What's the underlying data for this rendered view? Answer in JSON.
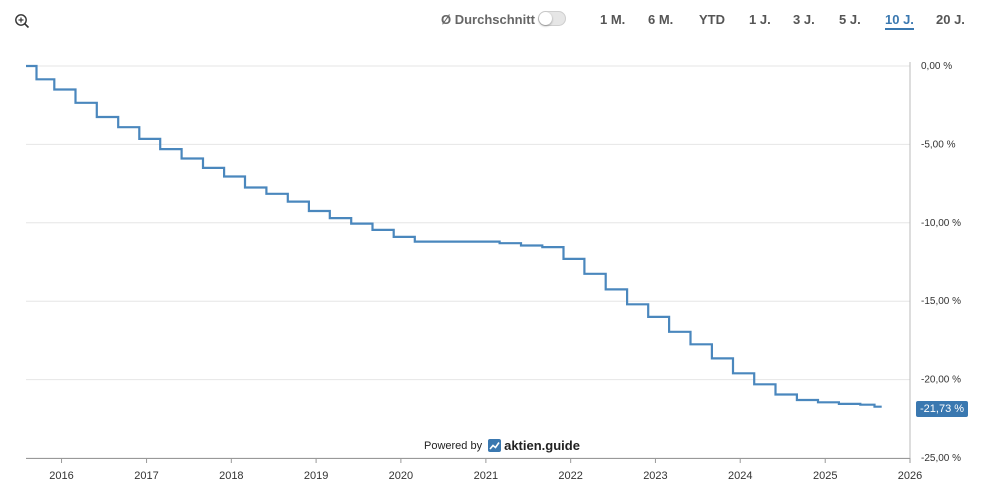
{
  "toolbar": {
    "average_label": "Ø Durchschnitt",
    "ranges": [
      "1 M.",
      "6 M.",
      "YTD",
      "1 J.",
      "3 J.",
      "5 J.",
      "10 J.",
      "20 J."
    ],
    "active_range": "10 J."
  },
  "footer": {
    "powered_by": "Powered by",
    "brand": "aktien.guide"
  },
  "colors": {
    "line": "#4a87bd",
    "accent": "#3a78b0",
    "grid": "#e6e6e6"
  },
  "chart_data": {
    "type": "line",
    "title": "",
    "xlabel": "",
    "ylabel": "",
    "xlim": [
      "2015-08-01",
      "2026-01-01"
    ],
    "ylim": [
      -25,
      0
    ],
    "x_ticks": [
      "2016",
      "2017",
      "2018",
      "2019",
      "2020",
      "2021",
      "2022",
      "2023",
      "2024",
      "2025",
      "2026"
    ],
    "y_ticks": [
      0,
      -5,
      -10,
      -15,
      -20,
      -25
    ],
    "y_tick_labels": [
      "0,00 %",
      "-5,00 %",
      "-10,00 %",
      "-15,00 %",
      "-20,00 %",
      "-25,00 %"
    ],
    "last_value_label": "-21,73 %",
    "grid": true,
    "series": [
      {
        "step": true,
        "points": [
          [
            "2015-08-01",
            0.0
          ],
          [
            "2015-09-15",
            -0.85
          ],
          [
            "2015-12-01",
            -1.5
          ],
          [
            "2016-03-01",
            -2.35
          ],
          [
            "2016-06-01",
            -3.25
          ],
          [
            "2016-09-01",
            -3.9
          ],
          [
            "2016-12-01",
            -4.65
          ],
          [
            "2017-03-01",
            -5.3
          ],
          [
            "2017-06-01",
            -5.9
          ],
          [
            "2017-09-01",
            -6.5
          ],
          [
            "2017-12-01",
            -7.05
          ],
          [
            "2018-03-01",
            -7.75
          ],
          [
            "2018-06-01",
            -8.15
          ],
          [
            "2018-09-01",
            -8.65
          ],
          [
            "2018-12-01",
            -9.25
          ],
          [
            "2019-03-01",
            -9.7
          ],
          [
            "2019-06-01",
            -10.05
          ],
          [
            "2019-09-01",
            -10.45
          ],
          [
            "2019-12-01",
            -10.9
          ],
          [
            "2020-03-01",
            -11.2
          ],
          [
            "2021-03-01",
            -11.3
          ],
          [
            "2021-06-01",
            -11.45
          ],
          [
            "2021-09-01",
            -11.55
          ],
          [
            "2021-12-01",
            -12.3
          ],
          [
            "2022-03-01",
            -13.25
          ],
          [
            "2022-06-01",
            -14.25
          ],
          [
            "2022-09-01",
            -15.2
          ],
          [
            "2022-12-01",
            -16.0
          ],
          [
            "2023-03-01",
            -16.95
          ],
          [
            "2023-06-01",
            -17.75
          ],
          [
            "2023-09-01",
            -18.65
          ],
          [
            "2023-12-01",
            -19.6
          ],
          [
            "2024-03-01",
            -20.3
          ],
          [
            "2024-06-01",
            -20.95
          ],
          [
            "2024-09-01",
            -21.3
          ],
          [
            "2024-12-01",
            -21.45
          ],
          [
            "2025-03-01",
            -21.55
          ],
          [
            "2025-06-01",
            -21.6
          ],
          [
            "2025-08-01",
            -21.73
          ],
          [
            "2025-09-01",
            -21.73
          ]
        ]
      }
    ]
  }
}
